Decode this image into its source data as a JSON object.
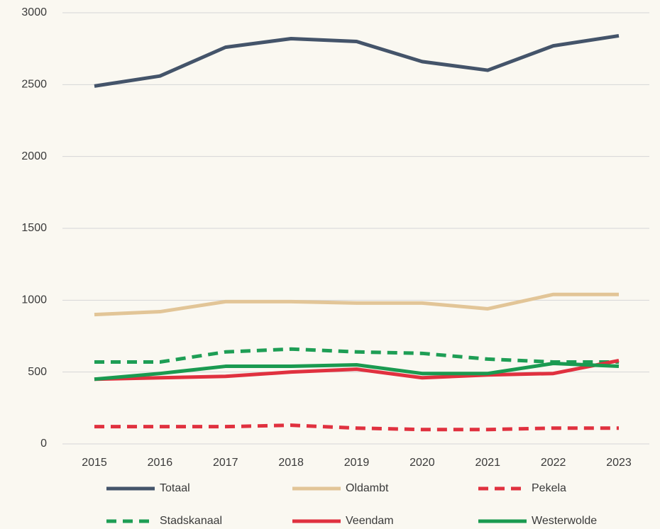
{
  "chart_data": {
    "type": "line",
    "x": [
      "2015",
      "2016",
      "2017",
      "2018",
      "2019",
      "2020",
      "2021",
      "2022",
      "2023"
    ],
    "series": [
      {
        "name": "Totaal",
        "color": "#44546a",
        "line_style": "solid",
        "values": [
          2490,
          2560,
          2760,
          2820,
          2800,
          2660,
          2600,
          2770,
          2840
        ]
      },
      {
        "name": "Oldambt",
        "color": "#e2c597",
        "line_style": "solid",
        "values": [
          900,
          920,
          990,
          990,
          980,
          980,
          940,
          1040,
          1040
        ]
      },
      {
        "name": "Pekela",
        "color": "#e0313f",
        "line_style": "dashed",
        "values": [
          120,
          120,
          120,
          130,
          110,
          100,
          100,
          110,
          110
        ]
      },
      {
        "name": "Stadskanaal",
        "color": "#1e9e55",
        "line_style": "dashed",
        "values": [
          570,
          570,
          640,
          660,
          640,
          630,
          590,
          570,
          570
        ]
      },
      {
        "name": "Veendam",
        "color": "#e0313f",
        "line_style": "solid",
        "values": [
          450,
          460,
          470,
          500,
          520,
          460,
          480,
          490,
          580
        ]
      },
      {
        "name": "Westerwolde",
        "color": "#1a9a50",
        "line_style": "solid",
        "values": [
          450,
          490,
          540,
          540,
          550,
          490,
          490,
          560,
          540
        ]
      }
    ],
    "ylim": [
      0,
      3000
    ],
    "yticks": [
      0,
      500,
      1000,
      1500,
      2000,
      2500,
      3000
    ],
    "grid": true,
    "legend": "bottom"
  }
}
